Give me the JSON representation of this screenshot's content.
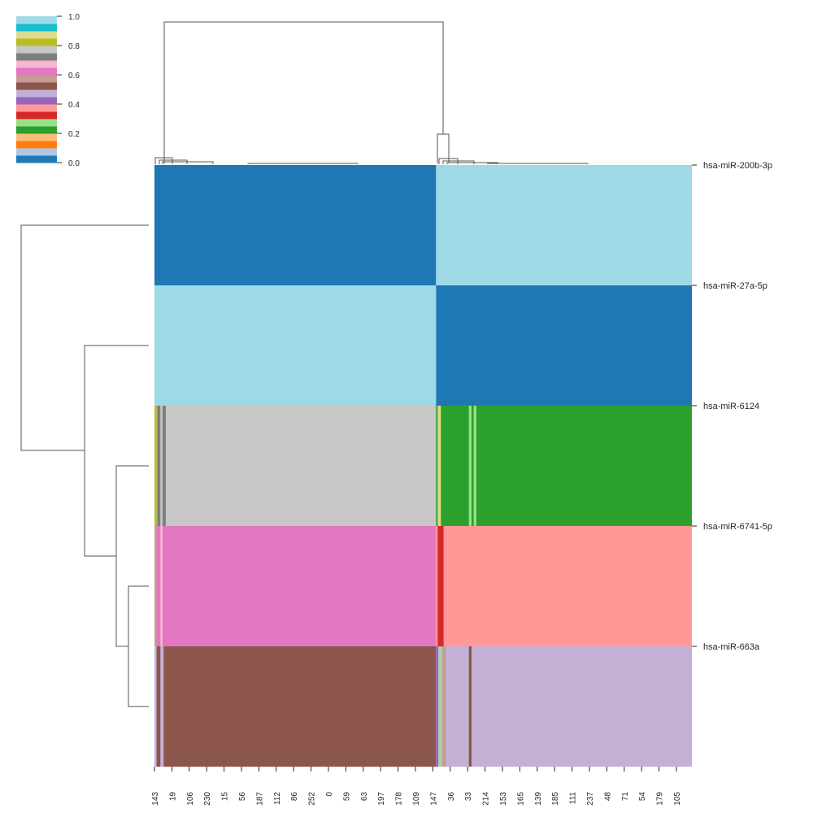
{
  "chart_data": {
    "type": "heatmap",
    "variant": "clustermap",
    "colormap": "tab20",
    "colormap_colors": [
      "#1f77b4",
      "#aec7e8",
      "#ff7f0e",
      "#ffbb78",
      "#2ca02c",
      "#98df8a",
      "#d62728",
      "#ff9896",
      "#9467bd",
      "#c5b0d5",
      "#8c564b",
      "#c49c94",
      "#e377c2",
      "#f7b6d2",
      "#7f7f7f",
      "#c7c7c7",
      "#bcbd22",
      "#dbdb8d",
      "#17becf",
      "#9edae5"
    ],
    "colorbar": {
      "vmin": 0.0,
      "vmax": 1.0,
      "ticks": [
        "0.0",
        "0.2",
        "0.4",
        "0.6",
        "0.8",
        "1.0"
      ],
      "placement": "top-left"
    },
    "row_labels": [
      "hsa-miR-200b-3p",
      "hsa-miR-27a-5p",
      "hsa-miR-6124",
      "hsa-miR-6741-5p",
      "hsa-miR-663a"
    ],
    "col_tick_labels": [
      "143",
      "19",
      "106",
      "230",
      "15",
      "56",
      "187",
      "112",
      "86",
      "252",
      "0",
      "59",
      "63",
      "197",
      "178",
      "109",
      "147",
      "36",
      "33",
      "214",
      "153",
      "165",
      "139",
      "185",
      "111",
      "237",
      "48",
      "71",
      "54",
      "179",
      "105"
    ],
    "column_clusters": [
      {
        "name": "left cluster",
        "fraction": 0.524
      },
      {
        "name": "right cluster",
        "fraction": 0.476
      }
    ],
    "cluster_values": [
      {
        "row": "hsa-miR-200b-3p",
        "left": 0.025,
        "right": 0.975
      },
      {
        "row": "hsa-miR-27a-5p",
        "left": 0.975,
        "right": 0.025
      },
      {
        "row": "hsa-miR-6124",
        "left": 0.775,
        "right": 0.225
      },
      {
        "row": "hsa-miR-6741-5p",
        "left": 0.625,
        "right": 0.375
      },
      {
        "row": "hsa-miR-663a",
        "left": 0.525,
        "right": 0.475
      }
    ],
    "outlier_stripes": [
      {
        "row": "hsa-miR-6124",
        "col_pos": 0.0,
        "width": 0.004,
        "value": 0.825
      },
      {
        "row": "hsa-miR-6124",
        "col_pos": 0.005,
        "width": 0.006,
        "value": 0.725
      },
      {
        "row": "hsa-miR-6124",
        "col_pos": 0.015,
        "width": 0.006,
        "value": 0.725
      },
      {
        "row": "hsa-miR-6124",
        "col_pos": 0.527,
        "width": 0.006,
        "value": 0.875
      },
      {
        "row": "hsa-miR-6124",
        "col_pos": 0.585,
        "width": 0.005,
        "value": 0.275
      },
      {
        "row": "hsa-miR-6124",
        "col_pos": 0.594,
        "width": 0.005,
        "value": 0.275
      },
      {
        "row": "hsa-miR-6741-5p",
        "col_pos": 0.0,
        "width": 0.004,
        "value": 0.575
      },
      {
        "row": "hsa-miR-6741-5p",
        "col_pos": 0.011,
        "width": 0.004,
        "value": 0.675
      },
      {
        "row": "hsa-miR-6741-5p",
        "col_pos": 0.527,
        "width": 0.011,
        "value": 0.325
      },
      {
        "row": "hsa-miR-663a",
        "col_pos": 0.0,
        "width": 0.004,
        "value": 0.475
      },
      {
        "row": "hsa-miR-663a",
        "col_pos": 0.011,
        "width": 0.006,
        "value": 0.475
      },
      {
        "row": "hsa-miR-663a",
        "col_pos": 0.524,
        "width": 0.004,
        "value": 0.425
      },
      {
        "row": "hsa-miR-663a",
        "col_pos": 0.53,
        "width": 0.004,
        "value": 0.275
      },
      {
        "row": "hsa-miR-663a",
        "col_pos": 0.536,
        "width": 0.006,
        "value": 0.575
      },
      {
        "row": "hsa-miR-663a",
        "col_pos": 0.585,
        "width": 0.005,
        "value": 0.525
      }
    ]
  }
}
